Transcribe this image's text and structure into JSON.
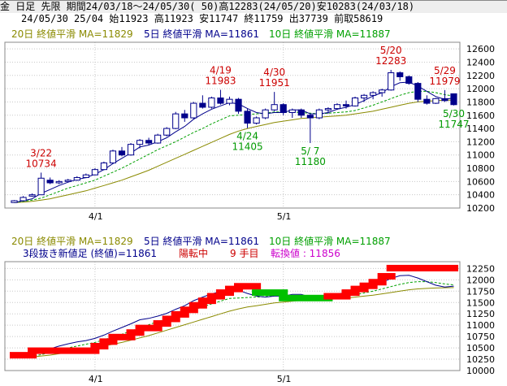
{
  "header": {
    "line1": "金 日足 先限 期間24/03/18～24/05/30( 50)高12283(24/05/20)安10283(24/03/18)",
    "line2": "24/05/30 25/04 始11923 高11923 安11747 終11759 出37739 前取58619"
  },
  "ma_legend": {
    "ma20": "20日 終値平滑 MA=11829",
    "ma5": "5日 終値平滑 MA=11861",
    "ma10": "10日 終値平滑 MA=11887"
  },
  "kagi_info": {
    "text1": "3段抜き新値足 (終値)=11861",
    "text2": "陽転中",
    "text3": "9 手目",
    "text4": "転換値 : 11856"
  },
  "colors": {
    "ma20": "#8a8a00",
    "ma5": "#00008b",
    "ma10": "#00a000",
    "candle": "#00008b",
    "up_brick": "#ff0000",
    "down_brick": "#00c000",
    "grid": "#c8c8c8",
    "annotation_high": "#cc0000",
    "annotation_low": "#009900"
  },
  "chart_data": [
    {
      "type": "candlestick",
      "title": "",
      "x_labels": [
        "4/1",
        "5/1"
      ],
      "ylim": [
        10200,
        12700
      ],
      "y_ticks": [
        10200,
        10400,
        10600,
        10800,
        11000,
        11200,
        11400,
        11600,
        11800,
        12000,
        12200,
        12400,
        12600
      ],
      "candles": [
        {
          "d": "3/18",
          "o": 10283,
          "h": 10320,
          "l": 10283,
          "c": 10310
        },
        {
          "d": "3/19",
          "o": 10310,
          "h": 10380,
          "l": 10300,
          "c": 10360
        },
        {
          "d": "3/21",
          "o": 10380,
          "h": 10420,
          "l": 10370,
          "c": 10400
        },
        {
          "d": "3/22",
          "o": 10400,
          "h": 10734,
          "l": 10400,
          "c": 10650
        },
        {
          "d": "3/25",
          "o": 10620,
          "h": 10660,
          "l": 10560,
          "c": 10580
        },
        {
          "d": "3/26",
          "o": 10580,
          "h": 10620,
          "l": 10560,
          "c": 10600
        },
        {
          "d": "3/27",
          "o": 10600,
          "h": 10640,
          "l": 10590,
          "c": 10620
        },
        {
          "d": "3/28",
          "o": 10620,
          "h": 10680,
          "l": 10610,
          "c": 10660
        },
        {
          "d": "3/29",
          "o": 10660,
          "h": 10720,
          "l": 10650,
          "c": 10700
        },
        {
          "d": "4/1",
          "o": 10700,
          "h": 10800,
          "l": 10690,
          "c": 10780
        },
        {
          "d": "4/2",
          "o": 10780,
          "h": 10900,
          "l": 10770,
          "c": 10880
        },
        {
          "d": "4/3",
          "o": 10880,
          "h": 11080,
          "l": 10870,
          "c": 11060
        },
        {
          "d": "4/4",
          "o": 11060,
          "h": 11120,
          "l": 10980,
          "c": 11000
        },
        {
          "d": "4/5",
          "o": 11000,
          "h": 11180,
          "l": 10990,
          "c": 11160
        },
        {
          "d": "4/8",
          "o": 11160,
          "h": 11240,
          "l": 11100,
          "c": 11220
        },
        {
          "d": "4/9",
          "o": 11220,
          "h": 11260,
          "l": 11150,
          "c": 11180
        },
        {
          "d": "4/10",
          "o": 11180,
          "h": 11320,
          "l": 11170,
          "c": 11300
        },
        {
          "d": "4/11",
          "o": 11300,
          "h": 11420,
          "l": 11280,
          "c": 11400
        },
        {
          "d": "4/12",
          "o": 11400,
          "h": 11650,
          "l": 11390,
          "c": 11620
        },
        {
          "d": "4/15",
          "o": 11620,
          "h": 11680,
          "l": 11500,
          "c": 11560
        },
        {
          "d": "4/16",
          "o": 11560,
          "h": 11800,
          "l": 11540,
          "c": 11780
        },
        {
          "d": "4/17",
          "o": 11780,
          "h": 11900,
          "l": 11700,
          "c": 11720
        },
        {
          "d": "4/18",
          "o": 11720,
          "h": 11880,
          "l": 11700,
          "c": 11860
        },
        {
          "d": "4/19",
          "o": 11860,
          "h": 11983,
          "l": 11760,
          "c": 11780
        },
        {
          "d": "4/22",
          "o": 11780,
          "h": 11880,
          "l": 11750,
          "c": 11840
        },
        {
          "d": "4/23",
          "o": 11840,
          "h": 11860,
          "l": 11620,
          "c": 11660
        },
        {
          "d": "4/24",
          "o": 11660,
          "h": 11700,
          "l": 11405,
          "c": 11480
        },
        {
          "d": "4/25",
          "o": 11480,
          "h": 11580,
          "l": 11460,
          "c": 11560
        },
        {
          "d": "4/26",
          "o": 11560,
          "h": 11700,
          "l": 11540,
          "c": 11680
        },
        {
          "d": "4/30",
          "o": 11680,
          "h": 11951,
          "l": 11660,
          "c": 11760
        },
        {
          "d": "5/1",
          "o": 11760,
          "h": 11780,
          "l": 11600,
          "c": 11640
        },
        {
          "d": "5/2",
          "o": 11640,
          "h": 11700,
          "l": 11560,
          "c": 11680
        },
        {
          "d": "5/3",
          "o": 11680,
          "h": 11700,
          "l": 11560,
          "c": 11600
        },
        {
          "d": "5/7",
          "o": 11600,
          "h": 11620,
          "l": 11180,
          "c": 11560
        },
        {
          "d": "5/8",
          "o": 11560,
          "h": 11700,
          "l": 11540,
          "c": 11680
        },
        {
          "d": "5/9",
          "o": 11680,
          "h": 11720,
          "l": 11620,
          "c": 11700
        },
        {
          "d": "5/10",
          "o": 11700,
          "h": 11780,
          "l": 11680,
          "c": 11760
        },
        {
          "d": "5/13",
          "o": 11760,
          "h": 11820,
          "l": 11700,
          "c": 11740
        },
        {
          "d": "5/14",
          "o": 11740,
          "h": 11880,
          "l": 11730,
          "c": 11860
        },
        {
          "d": "5/15",
          "o": 11860,
          "h": 11920,
          "l": 11800,
          "c": 11900
        },
        {
          "d": "5/16",
          "o": 11900,
          "h": 11960,
          "l": 11840,
          "c": 11940
        },
        {
          "d": "5/17",
          "o": 11940,
          "h": 12000,
          "l": 11880,
          "c": 11980
        },
        {
          "d": "5/20",
          "o": 11980,
          "h": 12283,
          "l": 11970,
          "c": 12240
        },
        {
          "d": "5/21",
          "o": 12240,
          "h": 12260,
          "l": 12120,
          "c": 12180
        },
        {
          "d": "5/22",
          "o": 12180,
          "h": 12200,
          "l": 12060,
          "c": 12080
        },
        {
          "d": "5/23",
          "o": 12080,
          "h": 12100,
          "l": 11800,
          "c": 11840
        },
        {
          "d": "5/24",
          "o": 11840,
          "h": 11900,
          "l": 11760,
          "c": 11780
        },
        {
          "d": "5/27",
          "o": 11780,
          "h": 11860,
          "l": 11770,
          "c": 11850
        },
        {
          "d": "5/29",
          "o": 11850,
          "h": 11979,
          "l": 11800,
          "c": 11820
        },
        {
          "d": "5/30",
          "o": 11923,
          "h": 11923,
          "l": 11747,
          "c": 11759
        }
      ],
      "ma5": [
        10283,
        10310,
        10340,
        10420,
        10480,
        10540,
        10590,
        10630,
        10660,
        10710,
        10780,
        10870,
        10950,
        11030,
        11120,
        11150,
        11200,
        11260,
        11350,
        11430,
        11540,
        11620,
        11690,
        11740,
        11790,
        11770,
        11700,
        11640,
        11620,
        11640,
        11640,
        11680,
        11680,
        11620,
        11620,
        11640,
        11690,
        11720,
        11760,
        11820,
        11890,
        11940,
        12030,
        12090,
        12100,
        12040,
        11960,
        11880,
        11840,
        11861
      ],
      "ma10": [
        10283,
        10300,
        10320,
        10350,
        10400,
        10450,
        10500,
        10540,
        10580,
        10620,
        10680,
        10740,
        10800,
        10870,
        10940,
        11010,
        11080,
        11140,
        11200,
        11270,
        11340,
        11400,
        11470,
        11530,
        11590,
        11600,
        11610,
        11620,
        11630,
        11650,
        11650,
        11650,
        11640,
        11630,
        11620,
        11630,
        11640,
        11650,
        11670,
        11710,
        11750,
        11800,
        11850,
        11900,
        11940,
        11960,
        11960,
        11940,
        11910,
        11887
      ],
      "ma20": [
        10283,
        10290,
        10300,
        10320,
        10340,
        10370,
        10400,
        10430,
        10460,
        10500,
        10540,
        10580,
        10620,
        10670,
        10720,
        10770,
        10830,
        10890,
        10950,
        11010,
        11070,
        11130,
        11190,
        11250,
        11310,
        11360,
        11400,
        11430,
        11460,
        11490,
        11510,
        11530,
        11550,
        11560,
        11570,
        11580,
        11590,
        11600,
        11620,
        11640,
        11660,
        11690,
        11720,
        11750,
        11780,
        11800,
        11810,
        11820,
        11825,
        11829
      ],
      "annotations": [
        {
          "date": "3/22",
          "value": "10734",
          "label": "3/22",
          "kind": "high"
        },
        {
          "date": "4/19",
          "value": "11983",
          "label": "4/19",
          "kind": "high"
        },
        {
          "date": "4/24",
          "value": "11405",
          "label": "4/24",
          "kind": "low"
        },
        {
          "date": "4/30",
          "value": "11951",
          "label": "4/30",
          "kind": "high"
        },
        {
          "date": "5/7",
          "value": "11180",
          "label": "5/ 7",
          "kind": "low"
        },
        {
          "date": "5/20",
          "value": "12283",
          "label": "5/20",
          "kind": "high"
        },
        {
          "date": "5/29",
          "value": "11979",
          "label": "5/29",
          "kind": "high"
        },
        {
          "date": "5/30",
          "value": "11747",
          "label": "5/30",
          "kind": "low"
        }
      ]
    },
    {
      "type": "line",
      "title": "",
      "x_labels": [
        "4/1",
        "5/1"
      ],
      "ylim": [
        10000,
        12400
      ],
      "y_ticks": [
        10000,
        10250,
        10500,
        10750,
        11000,
        11250,
        11500,
        11750,
        12000,
        12250
      ],
      "series_note": "new-price bricks (red up, green down) with MA lines",
      "bricks": [
        {
          "from": "3/18",
          "to": "3/21",
          "value": 10320,
          "dir": "up"
        },
        {
          "from": "3/21",
          "to": "4/1",
          "value": 10420,
          "dir": "up"
        },
        {
          "from": "4/1",
          "to": "4/2",
          "value": 10520,
          "dir": "up"
        },
        {
          "from": "4/2",
          "to": "4/3",
          "value": 10620,
          "dir": "up"
        },
        {
          "from": "4/3",
          "to": "4/5",
          "value": 10720,
          "dir": "up"
        },
        {
          "from": "4/5",
          "to": "4/8",
          "value": 10820,
          "dir": "up"
        },
        {
          "from": "4/8",
          "to": "4/10",
          "value": 10920,
          "dir": "up"
        },
        {
          "from": "4/10",
          "to": "4/11",
          "value": 11020,
          "dir": "up"
        },
        {
          "from": "4/11",
          "to": "4/12",
          "value": 11120,
          "dir": "up"
        },
        {
          "from": "4/12",
          "to": "4/15",
          "value": 11220,
          "dir": "up"
        },
        {
          "from": "4/15",
          "to": "4/16",
          "value": 11320,
          "dir": "up"
        },
        {
          "from": "4/16",
          "to": "4/17",
          "value": 11420,
          "dir": "up"
        },
        {
          "from": "4/17",
          "to": "4/18",
          "value": 11520,
          "dir": "up"
        },
        {
          "from": "4/18",
          "to": "4/19",
          "value": 11620,
          "dir": "up"
        },
        {
          "from": "4/19",
          "to": "4/22",
          "value": 11700,
          "dir": "up"
        },
        {
          "from": "4/22",
          "to": "4/23",
          "value": 11780,
          "dir": "up"
        },
        {
          "from": "4/23",
          "to": "4/25",
          "value": 11840,
          "dir": "up"
        },
        {
          "from": "4/25",
          "to": "5/1",
          "value": 11700,
          "dir": "down"
        },
        {
          "from": "5/1",
          "to": "5/9",
          "value": 11580,
          "dir": "down"
        },
        {
          "from": "5/9",
          "to": "5/13",
          "value": 11620,
          "dir": "up"
        },
        {
          "from": "5/13",
          "to": "5/14",
          "value": 11700,
          "dir": "up"
        },
        {
          "from": "5/14",
          "to": "5/15",
          "value": 11780,
          "dir": "up"
        },
        {
          "from": "5/15",
          "to": "5/16",
          "value": 11850,
          "dir": "up"
        },
        {
          "from": "5/16",
          "to": "5/17",
          "value": 11930,
          "dir": "up"
        },
        {
          "from": "5/17",
          "to": "5/20",
          "value": 12060,
          "dir": "up"
        },
        {
          "from": "5/20",
          "to": "5/30",
          "value": 12240,
          "dir": "up"
        }
      ]
    }
  ]
}
